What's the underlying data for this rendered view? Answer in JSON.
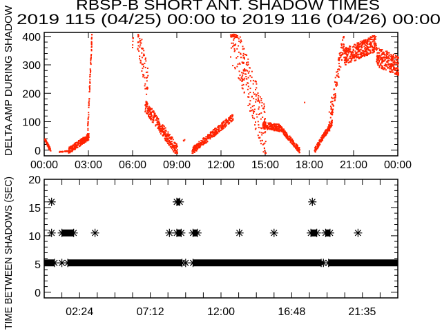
{
  "chart_data": [
    {
      "type": "scatter",
      "title": "RBSP-B SHORT ANT. SHADOW TIMES",
      "subtitle": "2019 115 (04/25) 00:00 to 2019 116 (04/26) 00:00",
      "ylabel": "DELTA AMP DURING SHADOW",
      "xlabel": "",
      "xlim": [
        0,
        24
      ],
      "ylim": [
        -20,
        414
      ],
      "x_unit": "hours",
      "xtick_values": [
        0,
        3,
        6,
        9,
        12,
        15,
        18,
        21,
        24
      ],
      "xtick_labels": [
        "00:00",
        "03:00",
        "06:00",
        "09:00",
        "12:00",
        "15:00",
        "18:00",
        "21:00",
        "00:00"
      ],
      "ytick_values": [
        0,
        100,
        200,
        300,
        400
      ],
      "ytick_labels": [
        "0",
        "100",
        "200",
        "300",
        "400"
      ],
      "color": "#ff2200",
      "point_clusters_note": "each cluster: [hour_start, hour_end, value_start, value_end, spread, point_count]",
      "point_clusters": [
        [
          0.0,
          0.4,
          40,
          0,
          12,
          60
        ],
        [
          0.9,
          1.8,
          -4,
          0,
          3,
          25
        ],
        [
          1.6,
          3.0,
          0,
          50,
          22,
          220
        ],
        [
          2.9,
          3.2,
          60,
          410,
          40,
          70
        ],
        [
          5.95,
          6.0,
          360,
          410,
          20,
          5
        ],
        [
          6.3,
          7.0,
          410,
          230,
          120,
          70
        ],
        [
          6.8,
          9.0,
          160,
          0,
          45,
          320
        ],
        [
          9.4,
          9.5,
          35,
          40,
          5,
          3
        ],
        [
          10.0,
          12.8,
          0,
          120,
          25,
          300
        ],
        [
          12.6,
          15.0,
          410,
          60,
          180,
          260
        ],
        [
          14.8,
          16.0,
          90,
          80,
          25,
          180
        ],
        [
          16.0,
          17.3,
          80,
          0,
          20,
          180
        ],
        [
          17.6,
          17.65,
          170,
          170,
          2,
          1
        ],
        [
          18.3,
          19.5,
          0,
          100,
          20,
          160
        ],
        [
          19.3,
          20.3,
          100,
          400,
          80,
          110
        ],
        [
          20.3,
          22.5,
          330,
          380,
          60,
          380
        ],
        [
          22.5,
          24.0,
          330,
          300,
          70,
          260
        ]
      ]
    },
    {
      "type": "scatter",
      "ylabel": "TIME BETWEEN SHADOWS (SEC)",
      "xlim": [
        0,
        24
      ],
      "ylim": [
        -1,
        20
      ],
      "x_unit": "hours",
      "xtick_values": [
        2.4,
        7.2,
        12.0,
        16.8,
        21.58
      ],
      "xtick_labels": [
        "02:24",
        "07:12",
        "12:00",
        "16:48",
        "21:35"
      ],
      "ytick_values": [
        0,
        5,
        10,
        15,
        20
      ],
      "ytick_labels": [
        "0",
        "5",
        "10",
        "15",
        "20"
      ],
      "marker": "asterisk",
      "dense_runs_note": "continuous runs of points: [hour_start, hour_end, value]",
      "dense_runs": [
        [
          0.0,
          0.7,
          5.2
        ],
        [
          1.6,
          9.35,
          5.2
        ],
        [
          10.1,
          18.8,
          5.2
        ],
        [
          19.3,
          24.0,
          5.2
        ],
        [
          1.2,
          2.0,
          10.5
        ],
        [
          9.0,
          9.3,
          10.5
        ],
        [
          10.1,
          10.4,
          10.5
        ],
        [
          18.1,
          18.5,
          10.5
        ],
        [
          19.1,
          19.4,
          10.5
        ],
        [
          9.0,
          9.2,
          16
        ]
      ],
      "points": [
        {
          "x": 0.5,
          "y": 16
        },
        {
          "x": 18.2,
          "y": 16
        },
        {
          "x": 0.5,
          "y": 10.5
        },
        {
          "x": 3.45,
          "y": 10.5
        },
        {
          "x": 8.5,
          "y": 10.5
        },
        {
          "x": 13.25,
          "y": 10.5
        },
        {
          "x": 15.6,
          "y": 10.5
        },
        {
          "x": 21.3,
          "y": 10.5
        },
        {
          "x": 1.2,
          "y": 5.2
        },
        {
          "x": 9.6,
          "y": 5.2
        },
        {
          "x": 18.95,
          "y": 5.2
        }
      ]
    }
  ]
}
